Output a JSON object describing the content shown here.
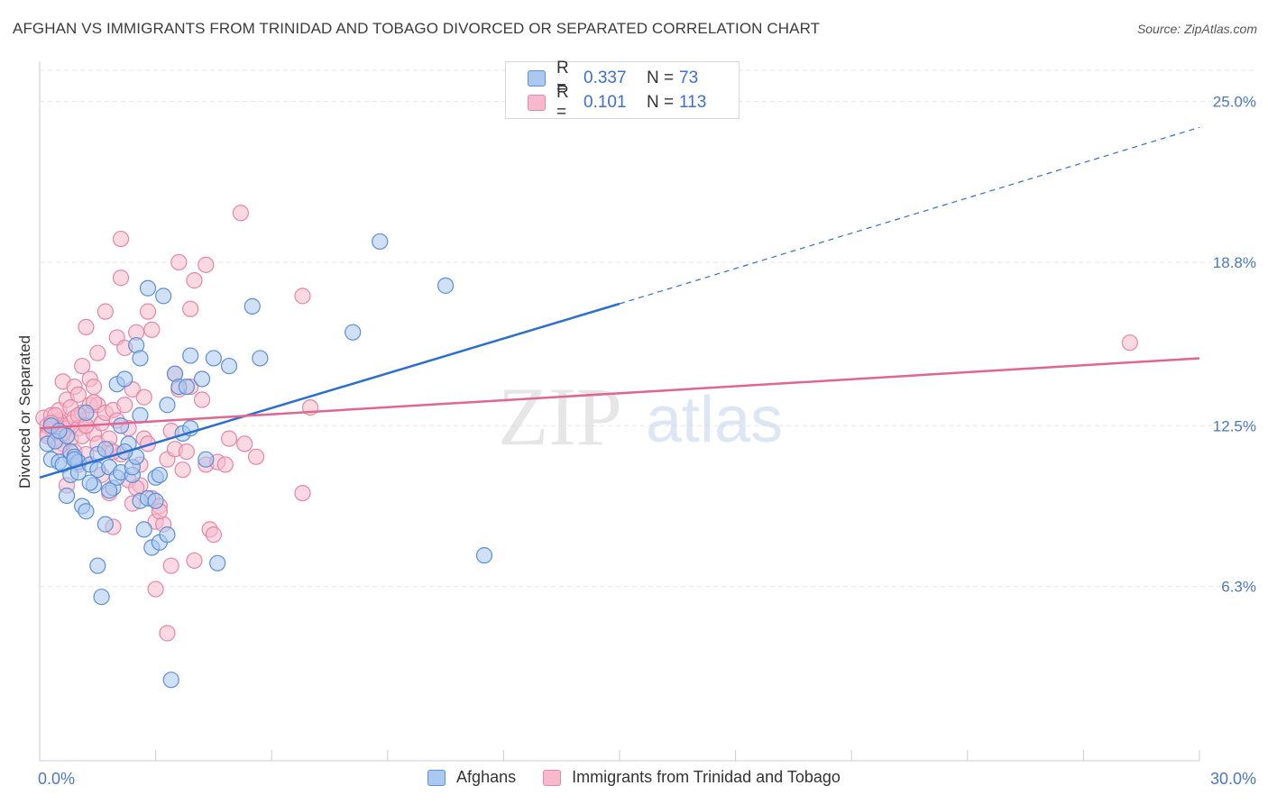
{
  "title": "AFGHAN VS IMMIGRANTS FROM TRINIDAD AND TOBAGO DIVORCED OR SEPARATED CORRELATION CHART",
  "source": "Source: ZipAtlas.com",
  "watermark": {
    "zip": "ZIP",
    "atlas": "atlas"
  },
  "legend_top": {
    "rows": [
      {
        "r_label": "R =",
        "r_value": "0.337",
        "n_label": "N =",
        "n_value": "73"
      },
      {
        "r_label": "R =",
        "r_value": "0.101",
        "n_label": "N =",
        "n_value": "113"
      }
    ]
  },
  "colors": {
    "blue_fill": "#aac8f0",
    "blue_stroke": "#5b8fd6",
    "blue_line": "#2c6fd0",
    "pink_fill": "#f7b9cc",
    "pink_stroke": "#e486a6",
    "pink_line": "#e0658f",
    "grid": "#e6e6e6",
    "axis_text": "#4a78c8"
  },
  "chart_data": {
    "type": "scatter",
    "title": "AFGHAN VS IMMIGRANTS FROM TRINIDAD AND TOBAGO DIVORCED OR SEPARATED CORRELATION CHART",
    "xlabel": "",
    "ylabel": "Divorced or Separated",
    "xlim": [
      0,
      30
    ],
    "ylim": [
      0,
      26.2
    ],
    "x_tick_labels": [
      "0.0%",
      "30.0%"
    ],
    "y_ticks": [
      6.3,
      12.5,
      18.8,
      25.0
    ],
    "y_tick_labels": [
      "6.3%",
      "12.5%",
      "18.8%",
      "25.0%"
    ],
    "series": [
      {
        "name": "Afghans",
        "r": 0.337,
        "n": 73,
        "trend": {
          "x0": 0,
          "y0": 10.5,
          "x1": 15,
          "y1": 17.2,
          "dashed_to_x": 30,
          "dashed_to_y": 24.0
        },
        "points": [
          [
            0.2,
            11.8
          ],
          [
            0.3,
            11.2
          ],
          [
            0.4,
            11.9
          ],
          [
            0.5,
            11.1
          ],
          [
            0.6,
            11.0
          ],
          [
            0.7,
            12.1
          ],
          [
            0.7,
            9.8
          ],
          [
            0.8,
            11.5
          ],
          [
            0.8,
            10.6
          ],
          [
            0.9,
            11.3
          ],
          [
            1.0,
            11.1
          ],
          [
            1.0,
            10.7
          ],
          [
            1.1,
            9.4
          ],
          [
            1.2,
            9.2
          ],
          [
            1.2,
            13.0
          ],
          [
            1.3,
            11.0
          ],
          [
            1.4,
            10.2
          ],
          [
            1.5,
            10.8
          ],
          [
            1.5,
            11.4
          ],
          [
            1.5,
            7.1
          ],
          [
            1.6,
            5.9
          ],
          [
            1.7,
            11.6
          ],
          [
            1.7,
            8.7
          ],
          [
            1.8,
            10.9
          ],
          [
            1.9,
            10.1
          ],
          [
            2.0,
            10.5
          ],
          [
            2.0,
            14.1
          ],
          [
            2.1,
            12.5
          ],
          [
            2.1,
            10.7
          ],
          [
            2.2,
            14.3
          ],
          [
            2.3,
            11.8
          ],
          [
            2.4,
            10.6
          ],
          [
            2.4,
            10.9
          ],
          [
            2.5,
            15.6
          ],
          [
            2.5,
            11.3
          ],
          [
            2.6,
            15.1
          ],
          [
            2.6,
            9.6
          ],
          [
            2.6,
            12.9
          ],
          [
            2.7,
            8.5
          ],
          [
            2.8,
            17.8
          ],
          [
            2.8,
            9.7
          ],
          [
            2.9,
            7.8
          ],
          [
            3.0,
            10.5
          ],
          [
            3.0,
            9.6
          ],
          [
            3.1,
            8.0
          ],
          [
            3.2,
            17.5
          ],
          [
            3.3,
            13.3
          ],
          [
            3.3,
            8.3
          ],
          [
            3.4,
            2.7
          ],
          [
            3.5,
            14.5
          ],
          [
            3.6,
            14.0
          ],
          [
            3.7,
            12.2
          ],
          [
            3.8,
            14.0
          ],
          [
            3.9,
            15.2
          ],
          [
            3.9,
            12.4
          ],
          [
            4.2,
            14.3
          ],
          [
            4.3,
            11.2
          ],
          [
            4.5,
            15.1
          ],
          [
            4.6,
            7.2
          ],
          [
            4.9,
            14.8
          ],
          [
            5.5,
            17.1
          ],
          [
            5.7,
            15.1
          ],
          [
            8.1,
            16.1
          ],
          [
            8.8,
            19.6
          ],
          [
            10.5,
            17.9
          ],
          [
            11.5,
            7.5
          ],
          [
            0.3,
            12.5
          ],
          [
            0.5,
            12.3
          ],
          [
            1.3,
            10.3
          ],
          [
            2.2,
            11.5
          ],
          [
            0.9,
            11.2
          ],
          [
            3.1,
            10.6
          ],
          [
            1.8,
            10.0
          ]
        ]
      },
      {
        "name": "Immigrants from Trinidad and Tobago",
        "r": 0.101,
        "n": 113,
        "trend": {
          "x0": 0,
          "y0": 12.4,
          "x1": 30,
          "y1": 15.1
        },
        "points": [
          [
            0.1,
            12.8
          ],
          [
            0.2,
            12.5
          ],
          [
            0.2,
            12.2
          ],
          [
            0.3,
            12.9
          ],
          [
            0.3,
            12.4
          ],
          [
            0.4,
            12.6
          ],
          [
            0.4,
            12.0
          ],
          [
            0.5,
            12.7
          ],
          [
            0.5,
            12.3
          ],
          [
            0.5,
            13.1
          ],
          [
            0.6,
            12.5
          ],
          [
            0.6,
            14.2
          ],
          [
            0.6,
            11.8
          ],
          [
            0.7,
            12.4
          ],
          [
            0.7,
            13.5
          ],
          [
            0.7,
            10.2
          ],
          [
            0.8,
            12.6
          ],
          [
            0.8,
            12.0
          ],
          [
            0.8,
            13.2
          ],
          [
            0.9,
            11.5
          ],
          [
            0.9,
            12.8
          ],
          [
            0.9,
            14.0
          ],
          [
            1.0,
            12.4
          ],
          [
            1.0,
            13.7
          ],
          [
            1.0,
            11.0
          ],
          [
            1.1,
            12.1
          ],
          [
            1.1,
            14.8
          ],
          [
            1.1,
            13.0
          ],
          [
            1.2,
            12.5
          ],
          [
            1.2,
            16.3
          ],
          [
            1.2,
            11.4
          ],
          [
            1.3,
            14.3
          ],
          [
            1.3,
            12.9
          ],
          [
            1.3,
            13.3
          ],
          [
            1.4,
            14.0
          ],
          [
            1.4,
            12.2
          ],
          [
            1.5,
            15.3
          ],
          [
            1.5,
            11.8
          ],
          [
            1.5,
            13.3
          ],
          [
            1.6,
            12.6
          ],
          [
            1.6,
            10.6
          ],
          [
            1.7,
            16.9
          ],
          [
            1.7,
            13.0
          ],
          [
            1.8,
            11.6
          ],
          [
            1.8,
            9.9
          ],
          [
            1.8,
            12.0
          ],
          [
            1.9,
            8.6
          ],
          [
            1.9,
            13.1
          ],
          [
            2.0,
            12.7
          ],
          [
            2.0,
            15.9
          ],
          [
            2.1,
            11.4
          ],
          [
            2.1,
            19.7
          ],
          [
            2.1,
            18.2
          ],
          [
            2.2,
            15.5
          ],
          [
            2.2,
            13.3
          ],
          [
            2.3,
            10.4
          ],
          [
            2.4,
            13.9
          ],
          [
            2.4,
            9.5
          ],
          [
            2.5,
            16.1
          ],
          [
            2.6,
            11.0
          ],
          [
            2.6,
            10.2
          ],
          [
            2.7,
            12.0
          ],
          [
            2.7,
            13.6
          ],
          [
            2.8,
            16.9
          ],
          [
            2.8,
            11.8
          ],
          [
            2.9,
            16.2
          ],
          [
            2.9,
            9.7
          ],
          [
            3.0,
            8.8
          ],
          [
            3.0,
            6.2
          ],
          [
            3.1,
            9.4
          ],
          [
            3.2,
            8.7
          ],
          [
            3.3,
            11.2
          ],
          [
            3.3,
            4.5
          ],
          [
            3.4,
            12.3
          ],
          [
            3.4,
            7.1
          ],
          [
            3.5,
            14.5
          ],
          [
            3.5,
            11.6
          ],
          [
            3.6,
            18.8
          ],
          [
            3.6,
            13.9
          ],
          [
            3.7,
            10.8
          ],
          [
            3.8,
            11.5
          ],
          [
            3.9,
            17.0
          ],
          [
            3.9,
            14.0
          ],
          [
            4.0,
            18.1
          ],
          [
            4.0,
            7.3
          ],
          [
            4.2,
            13.5
          ],
          [
            4.3,
            18.7
          ],
          [
            4.3,
            11.0
          ],
          [
            4.4,
            8.5
          ],
          [
            4.5,
            8.3
          ],
          [
            4.6,
            11.1
          ],
          [
            4.8,
            11.0
          ],
          [
            4.9,
            12.0
          ],
          [
            5.2,
            20.7
          ],
          [
            5.3,
            11.8
          ],
          [
            5.6,
            11.3
          ],
          [
            6.8,
            17.5
          ],
          [
            6.8,
            9.9
          ],
          [
            7.0,
            13.2
          ],
          [
            28.2,
            15.7
          ],
          [
            0.2,
            12.1
          ],
          [
            0.4,
            12.9
          ],
          [
            0.6,
            12.2
          ],
          [
            0.8,
            11.3
          ],
          [
            1.0,
            12.9
          ],
          [
            1.4,
            13.4
          ],
          [
            1.9,
            11.5
          ],
          [
            2.3,
            12.4
          ],
          [
            3.1,
            9.2
          ],
          [
            0.3,
            12.6
          ],
          [
            0.5,
            11.7
          ],
          [
            1.2,
            12.5
          ],
          [
            2.5,
            10.1
          ]
        ]
      }
    ]
  },
  "bottom_legend": {
    "items": [
      {
        "label": "Afghans"
      },
      {
        "label": "Immigrants from Trinidad and Tobago"
      }
    ]
  }
}
